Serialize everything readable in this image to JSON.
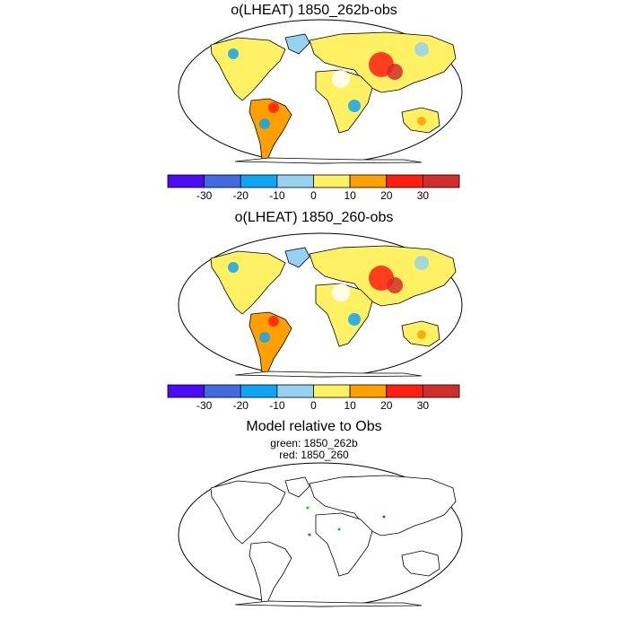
{
  "panels": [
    {
      "title": "o(LHEAT) 1850_262b-obs"
    },
    {
      "title": "o(LHEAT) 1850_260-obs"
    }
  ],
  "colorbar": {
    "colors": [
      "#4b0cf5",
      "#4169e1",
      "#0fa5f5",
      "#96d2f0",
      "#fff064",
      "#ffa000",
      "#ff1e0f",
      "#d22d2d"
    ],
    "labels": [
      "-30",
      "-20",
      "-10",
      "0",
      "10",
      "20",
      "30"
    ]
  },
  "comparison": {
    "title": "Model relative to Obs",
    "legend_green": "green: 1850_262b",
    "legend_red": "red: 1850_260",
    "green_color": "#22bb22",
    "red_color": "#dd2222"
  }
}
